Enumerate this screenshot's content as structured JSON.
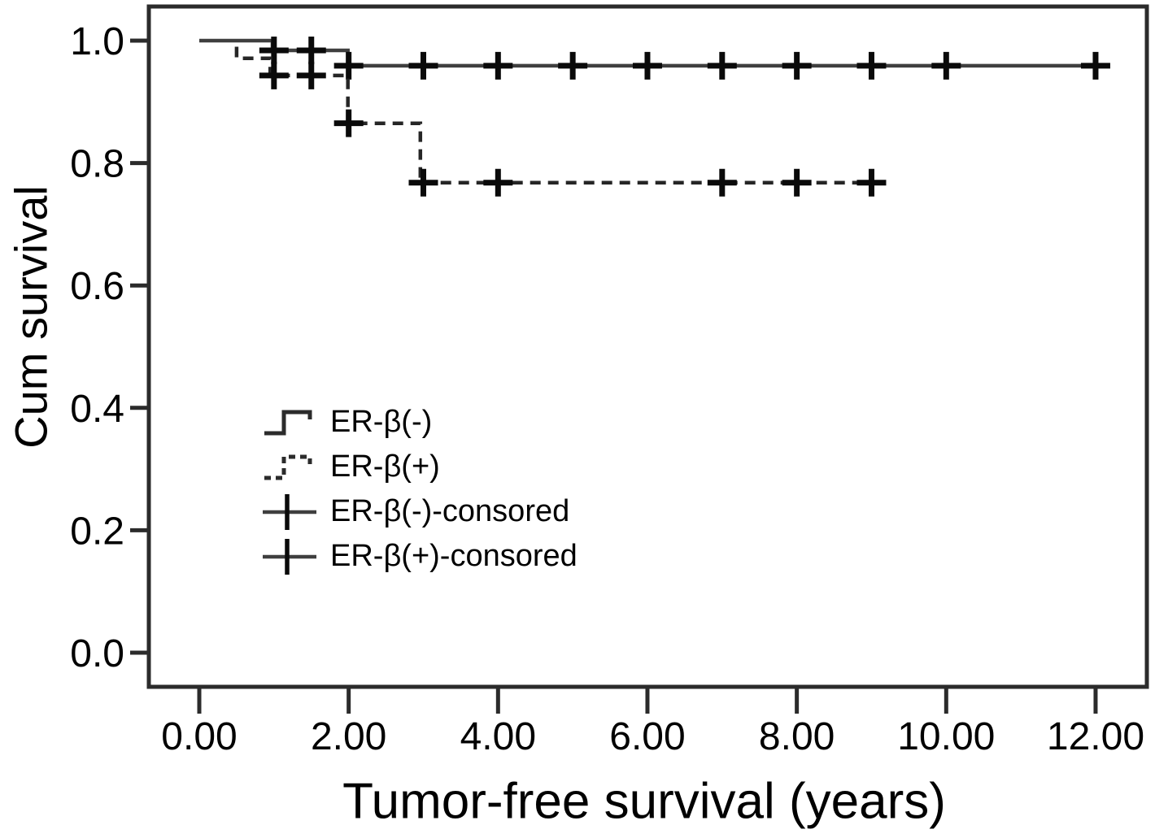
{
  "figure": {
    "background": "#ffffff",
    "frame_color": "#2b2b2b",
    "curve_color": "#3f3f3f",
    "censor_color": "#0a0a0a"
  },
  "chart_data": {
    "type": "line",
    "subtype": "kaplan-meier-step",
    "title": "",
    "xlabel": "Tumor-free survival (years)",
    "ylabel": "Cum survival",
    "grid": false,
    "legend_position": "inside-left-middle",
    "xlim": [
      -0.68,
      12.69
    ],
    "ylim": [
      -0.056,
      1.056
    ],
    "x_ticks": {
      "values": [
        0,
        2,
        4,
        6,
        8,
        10,
        12
      ],
      "labels": [
        "0.00",
        "2.00",
        "4.00",
        "6.00",
        "8.00",
        "10.00",
        "12.00"
      ]
    },
    "y_ticks": {
      "values": [
        1.0,
        0.8,
        0.6,
        0.4,
        0.2,
        0.0
      ],
      "labels": [
        "1.0",
        "0.8",
        "0.6",
        "0.4",
        "0.2",
        "0.0"
      ]
    },
    "series": [
      {
        "name": "ER-β(-)",
        "line_style": "solid",
        "points": [
          [
            0,
            1.0
          ],
          [
            0.98,
            1.0
          ],
          [
            0.98,
            0.984
          ],
          [
            1.99,
            0.984
          ],
          [
            1.99,
            0.959
          ],
          [
            12.15,
            0.959
          ]
        ],
        "censor_marks": [
          [
            1.0,
            0.984
          ],
          [
            1.5,
            0.984
          ],
          [
            2.0,
            0.959
          ],
          [
            3.0,
            0.959
          ],
          [
            4.0,
            0.959
          ],
          [
            5.0,
            0.959
          ],
          [
            6.0,
            0.959
          ],
          [
            7.0,
            0.959
          ],
          [
            8.0,
            0.959
          ],
          [
            9.0,
            0.959
          ],
          [
            10.0,
            0.959
          ],
          [
            12.0,
            0.959
          ]
        ]
      },
      {
        "name": "ER-β(+)",
        "line_style": "dashed",
        "points": [
          [
            0.5,
            0.99
          ],
          [
            0.5,
            0.971
          ],
          [
            0.95,
            0.971
          ],
          [
            0.95,
            0.943
          ],
          [
            1.99,
            0.943
          ],
          [
            1.99,
            0.865
          ],
          [
            2.96,
            0.865
          ],
          [
            2.96,
            0.768
          ],
          [
            9.15,
            0.768
          ]
        ],
        "censor_marks": [
          [
            1.0,
            0.943
          ],
          [
            1.5,
            0.943
          ],
          [
            2.0,
            0.865
          ],
          [
            3.0,
            0.768
          ],
          [
            4.0,
            0.768
          ],
          [
            7.0,
            0.768
          ],
          [
            8.0,
            0.768
          ],
          [
            9.0,
            0.768
          ]
        ]
      }
    ]
  },
  "legend": {
    "items": [
      {
        "symbol": "step-solid",
        "label": "ER-β(-)"
      },
      {
        "symbol": "step-dashed",
        "label": "ER-β(+)"
      },
      {
        "symbol": "censored-line",
        "label": "ER-β(-)-consored"
      },
      {
        "symbol": "censored-line",
        "label": "ER-β(+)-consored"
      }
    ]
  }
}
